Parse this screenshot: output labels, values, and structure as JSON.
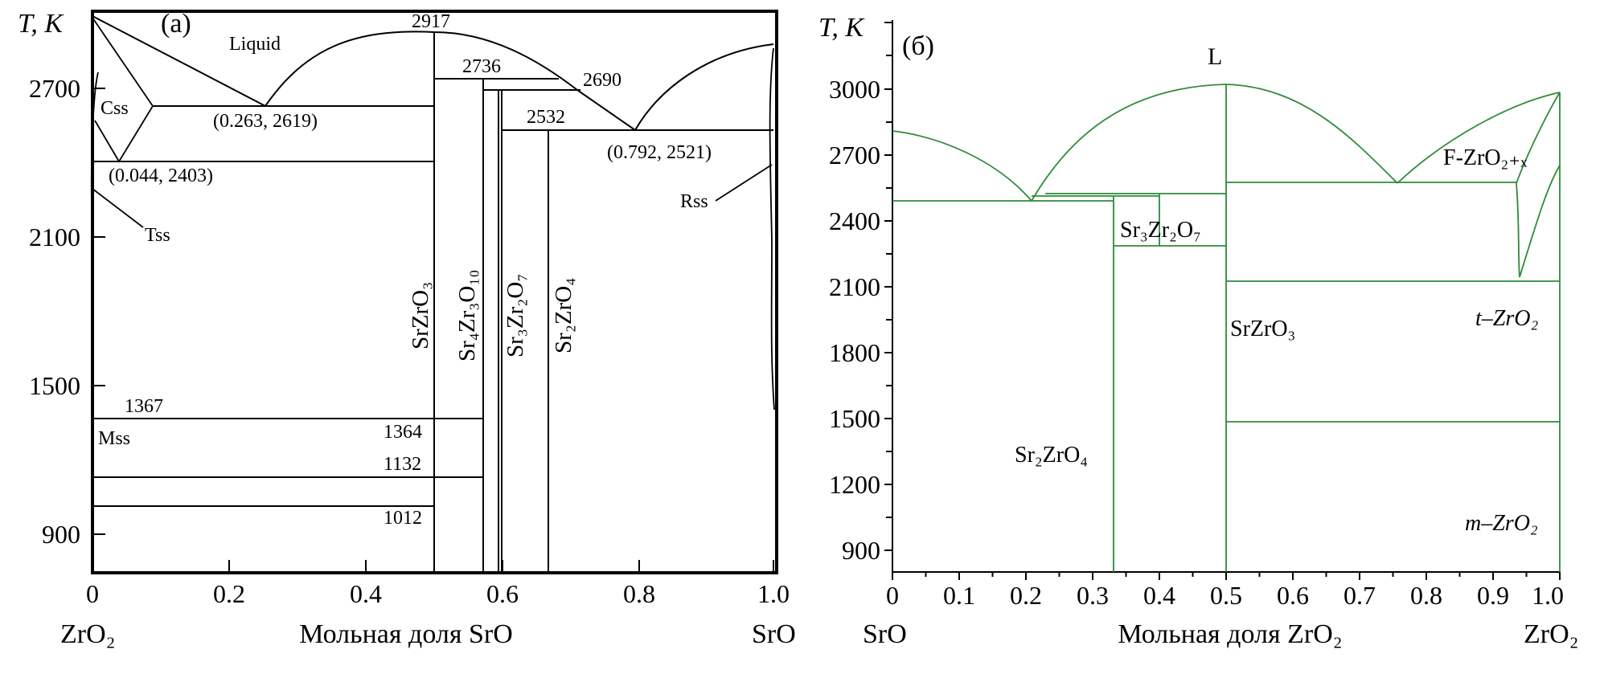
{
  "chart_data": [
    {
      "type": "phase-diagram",
      "panel_label": "(a)",
      "ylabel": "T, K",
      "xlabel": "Мольная доля SrO",
      "x_left_label": "ZrO₂",
      "x_right_label": "SrO",
      "xlim": [
        0,
        1
      ],
      "ylim": [
        700,
        2950
      ],
      "x_ticks": [
        "0",
        "0.2",
        "0.4",
        "0.6",
        "0.8",
        "1.0"
      ],
      "y_ticks": [
        "900",
        "1500",
        "2100",
        "2700"
      ],
      "colors": {
        "lines": "#000000"
      },
      "liquidus": [
        {
          "x": 0,
          "y": 2920
        },
        {
          "x": 0.263,
          "y": 2619
        },
        {
          "x": 0.5,
          "y": 2917
        },
        {
          "x": 0.74,
          "y": 2690
        },
        {
          "x": 0.792,
          "y": 2521
        },
        {
          "x": 1,
          "y": 2880
        }
      ],
      "compounds": [
        {
          "name": "SrZrO₃",
          "x": 0.5,
          "melting": "2917"
        },
        {
          "name": "Sr₄Zr₃O₁₀",
          "x": 0.571,
          "melting": "2736"
        },
        {
          "name": "Sr₃Zr₂O₇",
          "x": 0.6,
          "melting": "2690"
        },
        {
          "name": "Sr₂ZrO₄",
          "x": 0.667,
          "melting": "2532"
        }
      ],
      "eutectics": [
        {
          "x": 0.263,
          "T": 2619,
          "label": "(0.263, 2619)"
        },
        {
          "x": 0.044,
          "T": 2403,
          "label": "(0.044, 2403)"
        },
        {
          "x": 0.792,
          "T": 2521,
          "label": "(0.792, 2521)"
        }
      ],
      "isotherms": [
        "2917",
        "2736",
        "2690",
        "2532",
        "1367",
        "1364",
        "1132",
        "1012"
      ],
      "phase_labels": [
        "Liquid",
        "Css",
        "Tss",
        "Mss",
        "Rss"
      ]
    },
    {
      "type": "phase-diagram",
      "panel_label": "(б)",
      "ylabel": "T, K",
      "xlabel": "Мольная доля ZrO₂",
      "x_left_label": "SrO",
      "x_right_label": "ZrO₂",
      "xlim": [
        0,
        1
      ],
      "ylim": [
        800,
        3150
      ],
      "x_ticks": [
        "0",
        "0.1",
        "0.2",
        "0.3",
        "0.4",
        "0.5",
        "0.6",
        "0.7",
        "0.8",
        "0.9",
        "1.0"
      ],
      "y_ticks": [
        "900",
        "1200",
        "1500",
        "1800",
        "2100",
        "2400",
        "2700",
        "3000"
      ],
      "colors": {
        "lines": "#2e8b3a"
      },
      "liquidus": [
        {
          "x": 0,
          "y": 2810
        },
        {
          "x": 0.21,
          "y": 2490
        },
        {
          "x": 0.5,
          "y": 3020
        },
        {
          "x": 0.755,
          "y": 2580
        },
        {
          "x": 1,
          "y": 2990
        }
      ],
      "compounds": [
        {
          "name": "Sr₂ZrO₄",
          "x": 0.333
        },
        {
          "name": "Sr₃Zr₂O₇",
          "x": 0.4
        },
        {
          "name": "SrZrO₃",
          "x": 0.5
        }
      ],
      "phase_labels": [
        "L",
        "F-ZrO₂₊ₓ",
        "t–ZrO₂",
        "m–ZrO₂",
        "Sr₃Zr₂O₇",
        "SrZrO₃",
        "Sr₂ZrO₄"
      ]
    }
  ]
}
